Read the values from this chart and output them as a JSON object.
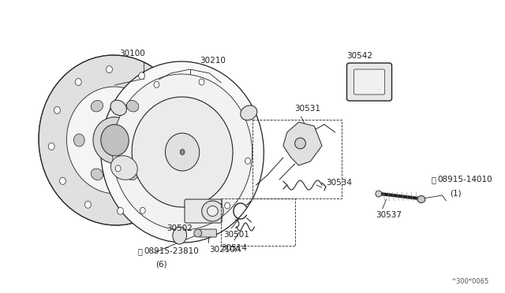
{
  "bg_color": "#ffffff",
  "line_color": "#222222",
  "text_color": "#222222",
  "diagram_code": "^300*0065",
  "label_30100": "30100",
  "label_30210": "30210",
  "label_30210A": "30210A",
  "label_08915_23810": "08915-23810",
  "label_08915_23810_qty": "(6)",
  "label_30502": "30502",
  "label_30501": "30501",
  "label_30514": "30514",
  "label_30531": "30531",
  "label_30534": "30534",
  "label_30542": "30542",
  "label_30537": "30537",
  "label_08915_14010": "08915-14010",
  "label_08915_14010_qty": "(1)",
  "font_size": 7.5,
  "lw_main": 0.9,
  "lw_thin": 0.5,
  "gray_fill": "#e8e8e8",
  "mid_fill": "#d0d0d0"
}
